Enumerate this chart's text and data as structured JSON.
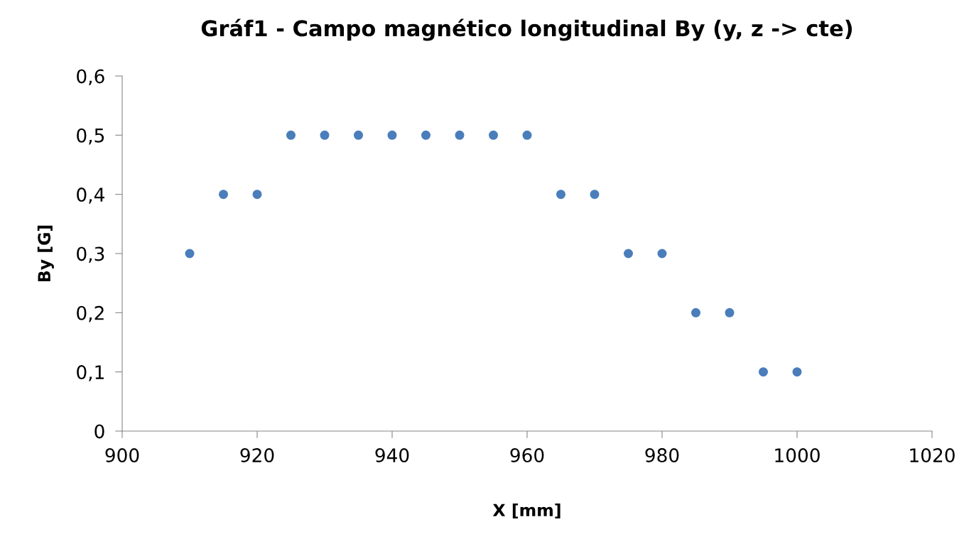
{
  "chart_data": {
    "type": "scatter",
    "title": "Gráf1 - Campo magnético longitudinal By (y, z -> cte)",
    "xlabel": "X [mm]",
    "ylabel": "By [G]",
    "x": [
      910,
      915,
      920,
      925,
      930,
      935,
      940,
      945,
      950,
      955,
      960,
      965,
      970,
      975,
      980,
      985,
      990,
      995,
      1000
    ],
    "series": [
      {
        "color": "#4a7ebb",
        "values": [
          0.3,
          0.4,
          0.4,
          0.5,
          0.5,
          0.5,
          0.5,
          0.5,
          0.5,
          0.5,
          0.5,
          0.4,
          0.4,
          0.3,
          0.3,
          0.2,
          0.2,
          0.1,
          0.1
        ]
      }
    ],
    "xlim": [
      900,
      1020
    ],
    "xticks": [
      900,
      920,
      940,
      960,
      980,
      1000,
      1020
    ],
    "ylim": [
      0,
      0.6
    ],
    "yticks": [
      0,
      {
        "value": 0.1,
        "label": "0,1"
      },
      {
        "value": 0.2,
        "label": "0,2"
      },
      {
        "value": 0.3,
        "label": "0,3"
      },
      {
        "value": 0.4,
        "label": "0,4"
      },
      {
        "value": 0.5,
        "label": "0,5"
      },
      {
        "value": 0.6,
        "label": "0,6"
      }
    ],
    "marker": "circle",
    "grid": false,
    "legend": false
  }
}
